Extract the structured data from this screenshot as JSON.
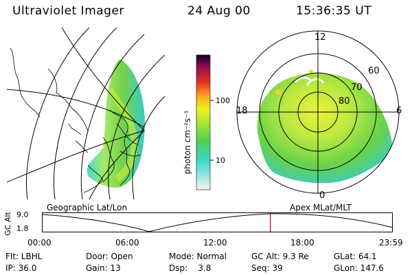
{
  "header": {
    "title": "Ultraviolet Imager",
    "date": "24 Aug 00",
    "time": "15:36:35 UT"
  },
  "colorbar": {
    "unit_label": "photon cm⁻²s⁻¹",
    "ticks": [
      "100",
      "10"
    ]
  },
  "polar_plot": {
    "mlt_labels": [
      "12",
      "18",
      "6",
      "0"
    ],
    "lat_labels": [
      "60",
      "70",
      "80"
    ]
  },
  "panels": {
    "left_caption": "Geographic Lat/Lon",
    "right_caption": "Apex MLat/MLT"
  },
  "altitude_plot": {
    "ylabel": "GC Alt",
    "yticks": [
      "9.0",
      "1.8"
    ],
    "xticks": [
      "00:00",
      "06:00",
      "12:00",
      "18:00",
      "23:59"
    ],
    "marker_time": "15:36",
    "colors": {
      "curve": "#000000",
      "marker": "#cc0000"
    }
  },
  "status": {
    "row1": [
      {
        "label": "Flt: LBHL"
      },
      {
        "label": "Door: Open"
      },
      {
        "label": "Mode: Normal"
      },
      {
        "label": "GC Alt: 9.3 Re"
      },
      {
        "label": "GLat: 64.1"
      }
    ],
    "row2": [
      {
        "label": "IP: 36.0"
      },
      {
        "label": "Gain: 13"
      },
      {
        "label": "Dsp:    3.8"
      },
      {
        "label": "Seq: 39"
      },
      {
        "label": "GLon: 147.6"
      }
    ]
  }
}
